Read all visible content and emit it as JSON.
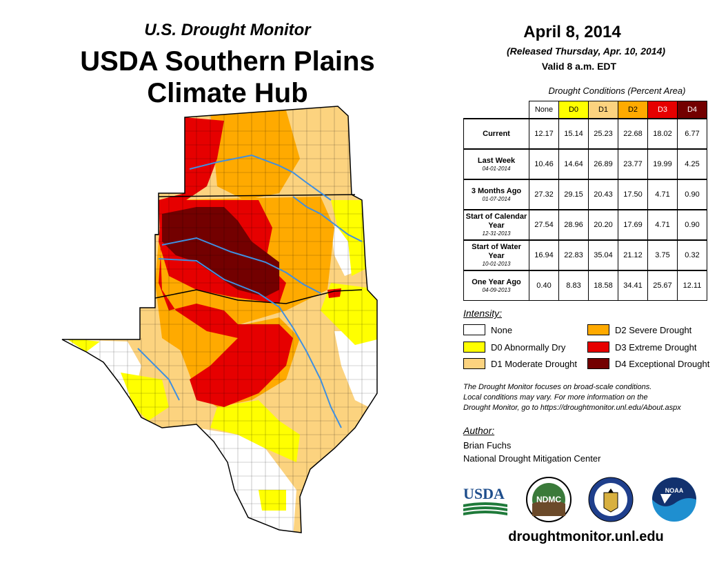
{
  "header": {
    "subtitle": "U.S. Drought Monitor",
    "title_line1": "USDA Southern Plains",
    "title_line2": "Climate Hub"
  },
  "date_block": {
    "date": "April 8, 2014",
    "released": "(Released Thursday, Apr. 10, 2014)",
    "valid": "Valid 8 a.m. EDT"
  },
  "table": {
    "caption": "Drought Conditions (Percent Area)",
    "columns": [
      "None",
      "D0",
      "D1",
      "D2",
      "D3",
      "D4"
    ],
    "column_colors": [
      "#ffffff",
      "#ffff00",
      "#fcd37f",
      "#ffaa00",
      "#e60000",
      "#730000"
    ],
    "column_text_colors": [
      "#000000",
      "#000000",
      "#000000",
      "#000000",
      "#ffffff",
      "#ffffff"
    ],
    "rows": [
      {
        "label": "Current",
        "sub": "",
        "values": [
          "12.17",
          "15.14",
          "25.23",
          "22.68",
          "18.02",
          "6.77"
        ]
      },
      {
        "label": "Last Week",
        "sub": "04-01-2014",
        "values": [
          "10.46",
          "14.64",
          "26.89",
          "23.77",
          "19.99",
          "4.25"
        ]
      },
      {
        "label": "3 Months Ago",
        "sub": "01-07-2014",
        "values": [
          "27.32",
          "29.15",
          "20.43",
          "17.50",
          "4.71",
          "0.90"
        ]
      },
      {
        "label": "Start of Calendar Year",
        "sub": "12-31-2013",
        "values": [
          "27.54",
          "28.96",
          "20.20",
          "17.69",
          "4.71",
          "0.90"
        ]
      },
      {
        "label": "Start of Water Year",
        "sub": "10-01-2013",
        "values": [
          "16.94",
          "22.83",
          "35.04",
          "21.12",
          "3.75",
          "0.32"
        ]
      },
      {
        "label": "One Year Ago",
        "sub": "04-09-2013",
        "values": [
          "0.40",
          "8.83",
          "18.58",
          "34.41",
          "25.67",
          "12.11"
        ]
      }
    ]
  },
  "legend": {
    "title": "Intensity:",
    "items": [
      {
        "label": "None",
        "color": "#ffffff"
      },
      {
        "label": "D0 Abnormally Dry",
        "color": "#ffff00"
      },
      {
        "label": "D1 Moderate Drought",
        "color": "#fcd37f"
      },
      {
        "label": "D2 Severe Drought",
        "color": "#ffaa00"
      },
      {
        "label": "D3 Extreme Drought",
        "color": "#e60000"
      },
      {
        "label": "D4 Exceptional Drought",
        "color": "#730000"
      }
    ]
  },
  "note": {
    "line1": "The Drought Monitor focuses on broad-scale conditions.",
    "line2": "Local conditions may vary. For more information on the",
    "line3": "Drought Monitor, go to https://droughtmonitor.unl.edu/About.aspx"
  },
  "author": {
    "title": "Author:",
    "name": "Brian Fuchs",
    "org": "National Drought Mitigation Center"
  },
  "logos": {
    "usda": "USDA",
    "ndmc": "NDMC",
    "noaa": "NOAA"
  },
  "website": "droughtmonitor.unl.edu",
  "colors": {
    "none": "#ffffff",
    "d0": "#ffff00",
    "d1": "#fcd37f",
    "d2": "#ffaa00",
    "d3": "#e60000",
    "d4": "#730000",
    "river": "#3f8fe0"
  }
}
